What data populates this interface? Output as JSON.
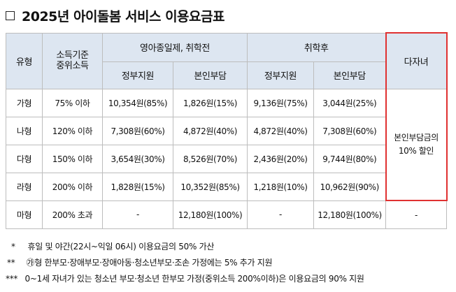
{
  "title": "2025년 아이돌봄 서비스 이용요금표",
  "table": {
    "headers": {
      "type": "유형",
      "income_line1": "소득기준",
      "income_line2": "중위소득",
      "before_school": "영아종일제, 취학전",
      "after_school": "취학후",
      "gov_support": "정부지원",
      "self_pay": "본인부담",
      "multi_child": "다자녀"
    },
    "rows": [
      {
        "type": "가형",
        "income": "75% 이하",
        "pre_gov": "10,354원(85%)",
        "pre_self": "1,826원(15%)",
        "post_gov": "9,136원(75%)",
        "post_self": "3,044원(25%)"
      },
      {
        "type": "나형",
        "income": "120% 이하",
        "pre_gov": "7,308원(60%)",
        "pre_self": "4,872원(40%)",
        "post_gov": "4,872원(40%)",
        "post_self": "7,308원(60%)"
      },
      {
        "type": "다형",
        "income": "150% 이하",
        "pre_gov": "3,654원(30%)",
        "pre_self": "8,526원(70%)",
        "post_gov": "2,436원(20%)",
        "post_self": "9,744원(80%)"
      },
      {
        "type": "라형",
        "income": "200% 이하",
        "pre_gov": "1,828원(15%)",
        "pre_self": "10,352원(85%)",
        "post_gov": "1,218원(10%)",
        "post_self": "10,962원(90%)"
      },
      {
        "type": "마형",
        "income": "200% 초과",
        "pre_gov": "-",
        "pre_self": "12,180원(100%)",
        "post_gov": "-",
        "post_self": "12,180원(100%)",
        "multi": "-"
      }
    ],
    "multi_child_discount_line1": "본인부담금의",
    "multi_child_discount_line2": "10% 할인"
  },
  "notes": [
    {
      "mark": "*",
      "text": "휴일 및 야간(22시~익일 06시) 이용요금의 50% 가산"
    },
    {
      "mark": "**",
      "text": "㉮형 한부모·장애부모·장애아동·청소년부모·조손 가정에는 5% 추가 지원"
    },
    {
      "mark": "***",
      "text": "0~1세 자녀가 있는 청소년 부모·청소년 한부모 가정(중위소득 200%이하)은 이용요금의 90% 지원"
    }
  ]
}
